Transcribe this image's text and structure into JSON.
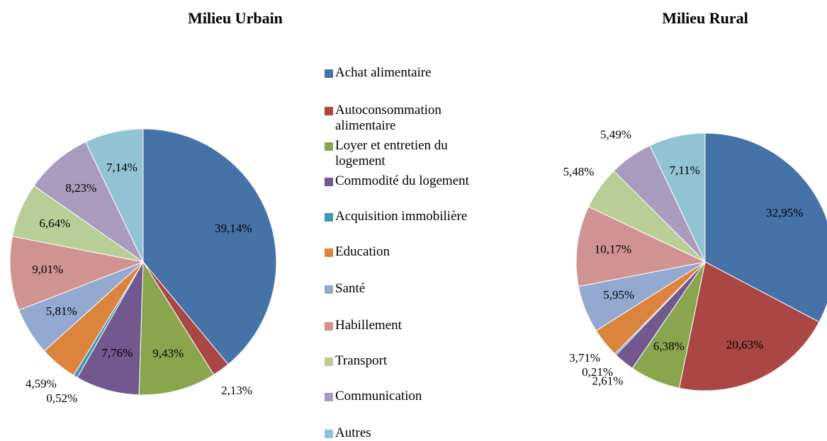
{
  "chart_data": [
    {
      "type": "pie",
      "title": "Milieu Urbain",
      "categories": [
        "Achat alimentaire",
        "Autoconsommation alimentaire",
        "Loyer et entretien du logement",
        "Commodité du logement",
        "Acquisition immobilière",
        "Education",
        "Santé",
        "Habillement",
        "Transport",
        "Communication",
        "Autres"
      ],
      "values": [
        39.14,
        2.13,
        9.43,
        7.76,
        0.52,
        4.59,
        5.81,
        9.01,
        6.64,
        8.23,
        7.14
      ],
      "value_labels": [
        "39,14%",
        "2,13%",
        "9,43%",
        "7,76%",
        "0,52%",
        "4,59%",
        "5,81%",
        "9,01%",
        "6,64%",
        "8,23%",
        "7,14%"
      ],
      "colors": [
        "#4572a7",
        "#aa4643",
        "#89a54e",
        "#71588f",
        "#4198af",
        "#db843d",
        "#93a9cf",
        "#d19392",
        "#b9cd96",
        "#a99bbd",
        "#92c3d4"
      ]
    },
    {
      "type": "pie",
      "title": "Milieu Rural",
      "categories": [
        "Achat alimentaire",
        "Autoconsommation alimentaire",
        "Loyer et entretien du logement",
        "Commodité du logement",
        "Acquisition immobilière",
        "Education",
        "Santé",
        "Habillement",
        "Transport",
        "Communication",
        "Autres"
      ],
      "values": [
        32.95,
        20.63,
        6.38,
        2.61,
        0.21,
        3.71,
        5.95,
        10.17,
        5.48,
        5.49,
        7.11
      ],
      "value_labels": [
        "32,95%",
        "20,63%",
        "6,38%",
        "2,61%",
        "0,21%",
        "3,71%",
        "5,95%",
        "10,17%",
        "5,48%",
        "5,49%",
        "7,11%"
      ],
      "colors": [
        "#4572a7",
        "#aa4643",
        "#89a54e",
        "#71588f",
        "#4198af",
        "#db843d",
        "#93a9cf",
        "#d19392",
        "#b9cd96",
        "#a99bbd",
        "#92c3d4"
      ]
    }
  ]
}
